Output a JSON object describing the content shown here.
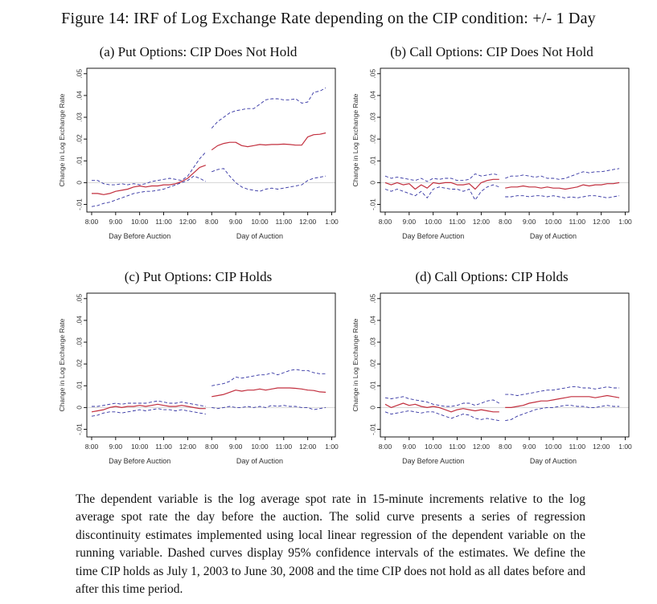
{
  "figure": {
    "title": "Figure 14: IRF of Log Exchange Rate depending on the CIP condition: +/- 1 Day",
    "caption": "The dependent variable is the log average spot rate in 15-minute increments relative to the log average spot rate the day before the auction. The solid curve presents a series of regression discontinuity estimates implemented using local linear regression of the dependent variable on the running variable. Dashed curves display 95% confidence intervals of the estimates. We define the time CIP holds as July 1, 2003 to June 30, 2008 and the time CIP does not hold as all dates before and after this time period."
  },
  "chart_style": {
    "estimate_color": "#c22f3e",
    "ci_color": "#3232a2",
    "zero_line_color": "#d4d4d4",
    "axis_color": "#000000",
    "tick_text_color": "#303030",
    "ylabel": "Change in Log Exchange Rate",
    "y_ticks": [
      -0.01,
      0,
      0.01,
      0.02,
      0.03,
      0.04,
      0.05
    ],
    "y_tick_labels": [
      "-.01",
      "0",
      ".01",
      ".02",
      ".03",
      ".04",
      ".05"
    ],
    "ylim": [
      -0.0135,
      0.0525
    ],
    "x_tick_labels": [
      "8:00",
      "9:00",
      "10:00",
      "11:00",
      "12:00",
      "8:00",
      "9:00",
      "10:00",
      "11:00",
      "12:00",
      "1:00"
    ],
    "x_group_labels": [
      "Day Before Auction",
      "Day of Auction"
    ],
    "time_step_minutes": 15,
    "solid_curve_meaning": "regression discontinuity estimate",
    "dashed_curve_meaning": "95% confidence interval",
    "legend_position": "none",
    "grid": "zero reference line only"
  },
  "chart_data": [
    {
      "id": "a",
      "title": "(a) Put Options: CIP Does Not Hold",
      "type": "line",
      "x_unit": "15-minute increments, 8:00 to 12:45 each day",
      "segments": {
        "day_before": {
          "estimate": [
            -0.005,
            -0.005,
            -0.0055,
            -0.005,
            -0.004,
            -0.0035,
            -0.003,
            -0.002,
            -0.0015,
            -0.002,
            -0.0015,
            -0.0015,
            -0.001,
            -0.001,
            -0.0005,
            0.0005,
            0.002,
            0.0045,
            0.007,
            0.008
          ],
          "ci_upper": [
            0.001,
            0.001,
            -0.0005,
            -0.001,
            -0.001,
            -0.0005,
            -0.001,
            -0.0005,
            -0.001,
            -0.0005,
            0.0005,
            0.001,
            0.0015,
            0.002,
            0.0015,
            0.001,
            0.003,
            0.007,
            0.011,
            0.014
          ],
          "ci_lower": [
            -0.011,
            -0.0105,
            -0.0095,
            -0.009,
            -0.008,
            -0.007,
            -0.006,
            -0.005,
            -0.0045,
            -0.004,
            -0.004,
            -0.0035,
            -0.003,
            -0.002,
            -0.001,
            0.0,
            0.001,
            0.003,
            0.002,
            0.0005
          ]
        },
        "day_of": {
          "estimate": [
            0.015,
            0.017,
            0.018,
            0.0185,
            0.0185,
            0.017,
            0.0165,
            0.017,
            0.0175,
            0.0173,
            0.0175,
            0.0175,
            0.0177,
            0.0175,
            0.0172,
            0.0172,
            0.021,
            0.022,
            0.0222,
            0.0228
          ],
          "ci_upper": [
            0.025,
            0.028,
            0.03,
            0.032,
            0.033,
            0.0335,
            0.034,
            0.034,
            0.036,
            0.038,
            0.0385,
            0.0385,
            0.038,
            0.038,
            0.0385,
            0.0365,
            0.037,
            0.0415,
            0.042,
            0.0435
          ],
          "ci_lower": [
            0.005,
            0.006,
            0.0065,
            0.003,
            0.0,
            -0.002,
            -0.003,
            -0.0035,
            -0.004,
            -0.003,
            -0.0025,
            -0.003,
            -0.0025,
            -0.002,
            -0.0015,
            -0.001,
            0.001,
            0.002,
            0.0025,
            0.003
          ]
        }
      }
    },
    {
      "id": "b",
      "title": "(b) Call Options: CIP Does Not Hold",
      "type": "line",
      "x_unit": "15-minute increments, 8:00 to 12:45 each day",
      "segments": {
        "day_before": {
          "estimate": [
            0.0,
            -0.001,
            0.0,
            -0.001,
            -0.0005,
            -0.003,
            -0.001,
            -0.0025,
            0.0,
            -0.0005,
            0.0,
            0.0,
            -0.001,
            -0.001,
            -0.0005,
            -0.003,
            0.0,
            0.001,
            0.0015,
            0.0015
          ],
          "ci_upper": [
            0.003,
            0.002,
            0.0025,
            0.002,
            0.0015,
            0.001,
            0.002,
            0.0005,
            0.002,
            0.0015,
            0.002,
            0.002,
            0.001,
            0.001,
            0.0015,
            0.004,
            0.003,
            0.0035,
            0.004,
            0.0035
          ],
          "ci_lower": [
            -0.003,
            -0.004,
            -0.003,
            -0.004,
            -0.005,
            -0.006,
            -0.004,
            -0.007,
            -0.003,
            -0.002,
            -0.0025,
            -0.003,
            -0.003,
            -0.004,
            -0.003,
            -0.008,
            -0.004,
            -0.002,
            -0.001,
            -0.002
          ]
        },
        "day_of": {
          "estimate": [
            -0.0025,
            -0.002,
            -0.002,
            -0.0015,
            -0.002,
            -0.002,
            -0.0025,
            -0.002,
            -0.0025,
            -0.0025,
            -0.003,
            -0.0025,
            -0.002,
            -0.001,
            -0.0015,
            -0.001,
            -0.001,
            -0.0005,
            -0.0005,
            0.0
          ],
          "ci_upper": [
            0.002,
            0.003,
            0.003,
            0.0035,
            0.003,
            0.0025,
            0.003,
            0.002,
            0.002,
            0.0015,
            0.002,
            0.003,
            0.004,
            0.005,
            0.0045,
            0.005,
            0.005,
            0.0055,
            0.006,
            0.0065
          ],
          "ci_lower": [
            -0.0065,
            -0.0065,
            -0.006,
            -0.006,
            -0.0065,
            -0.006,
            -0.006,
            -0.0065,
            -0.006,
            -0.0065,
            -0.007,
            -0.0065,
            -0.007,
            -0.0065,
            -0.006,
            -0.006,
            -0.0065,
            -0.007,
            -0.0065,
            -0.006
          ]
        }
      }
    },
    {
      "id": "c",
      "title": "(c) Put Options: CIP Holds",
      "type": "line",
      "x_unit": "15-minute increments, 8:00 to 12:45 each day",
      "segments": {
        "day_before": {
          "estimate": [
            -0.002,
            -0.0015,
            -0.001,
            0.0,
            0.0005,
            0.0,
            0.0005,
            0.0005,
            0.001,
            0.0005,
            0.001,
            0.0015,
            0.001,
            0.0005,
            0.0005,
            0.001,
            0.0005,
            0.0,
            -0.0005,
            -0.0005
          ],
          "ci_upper": [
            0.0005,
            0.0005,
            0.001,
            0.0015,
            0.002,
            0.0015,
            0.002,
            0.002,
            0.002,
            0.002,
            0.0025,
            0.003,
            0.0025,
            0.002,
            0.002,
            0.0025,
            0.002,
            0.0015,
            0.001,
            0.0005
          ],
          "ci_lower": [
            -0.004,
            -0.0035,
            -0.0025,
            -0.002,
            -0.002,
            -0.0025,
            -0.002,
            -0.0015,
            -0.001,
            -0.0015,
            -0.001,
            -0.0005,
            -0.001,
            -0.001,
            -0.0015,
            -0.001,
            -0.0015,
            -0.002,
            -0.0025,
            -0.003
          ]
        },
        "day_of": {
          "estimate": [
            0.005,
            0.0055,
            0.006,
            0.007,
            0.008,
            0.0075,
            0.008,
            0.008,
            0.0085,
            0.008,
            0.0085,
            0.009,
            0.009,
            0.009,
            0.0088,
            0.0085,
            0.008,
            0.0078,
            0.0072,
            0.007
          ],
          "ci_upper": [
            0.01,
            0.0105,
            0.011,
            0.012,
            0.014,
            0.0135,
            0.014,
            0.0145,
            0.015,
            0.015,
            0.016,
            0.015,
            0.016,
            0.017,
            0.0175,
            0.017,
            0.017,
            0.016,
            0.0155,
            0.0155
          ],
          "ci_lower": [
            0.0,
            -0.0005,
            0.0,
            0.0005,
            0.0,
            0.0,
            0.0005,
            0.0,
            0.0005,
            0.0,
            0.001,
            0.0005,
            0.001,
            0.0005,
            0.0005,
            0.0,
            0.0,
            -0.001,
            -0.0005,
            0.0
          ]
        }
      }
    },
    {
      "id": "d",
      "title": "(d) Call Options: CIP Holds",
      "type": "line",
      "x_unit": "15-minute increments, 8:00 to 12:45 each day",
      "segments": {
        "day_before": {
          "estimate": [
            0.0015,
            0.0,
            0.001,
            0.002,
            0.001,
            0.0015,
            0.0005,
            0.0,
            0.0005,
            0.0,
            -0.001,
            -0.002,
            -0.001,
            -0.0005,
            -0.001,
            -0.0015,
            -0.001,
            -0.0015,
            -0.002,
            -0.002
          ],
          "ci_upper": [
            0.0045,
            0.004,
            0.0045,
            0.005,
            0.004,
            0.0035,
            0.003,
            0.0025,
            0.0015,
            0.001,
            0.0005,
            0.0005,
            0.001,
            0.002,
            0.002,
            0.001,
            0.002,
            0.003,
            0.0035,
            0.002
          ],
          "ci_lower": [
            -0.002,
            -0.003,
            -0.0025,
            -0.002,
            -0.0015,
            -0.002,
            -0.0025,
            -0.002,
            -0.002,
            -0.003,
            -0.004,
            -0.005,
            -0.004,
            -0.003,
            -0.0035,
            -0.005,
            -0.0055,
            -0.005,
            -0.0055,
            -0.006
          ]
        },
        "day_of": {
          "estimate": [
            0.0,
            0.0,
            0.0005,
            0.001,
            0.002,
            0.0025,
            0.003,
            0.003,
            0.0035,
            0.004,
            0.0045,
            0.005,
            0.005,
            0.005,
            0.005,
            0.0045,
            0.005,
            0.0055,
            0.005,
            0.0045
          ],
          "ci_upper": [
            0.006,
            0.006,
            0.0055,
            0.006,
            0.0065,
            0.007,
            0.0075,
            0.008,
            0.008,
            0.0085,
            0.009,
            0.0095,
            0.0095,
            0.009,
            0.009,
            0.0085,
            0.009,
            0.0095,
            0.009,
            0.009
          ],
          "ci_lower": [
            -0.006,
            -0.0055,
            -0.004,
            -0.003,
            -0.002,
            -0.001,
            -0.0005,
            0.0,
            0.0,
            0.0005,
            0.001,
            0.001,
            0.0005,
            0.0005,
            0.0,
            0.0,
            0.0005,
            0.001,
            0.0005,
            0.0005
          ]
        }
      }
    }
  ]
}
